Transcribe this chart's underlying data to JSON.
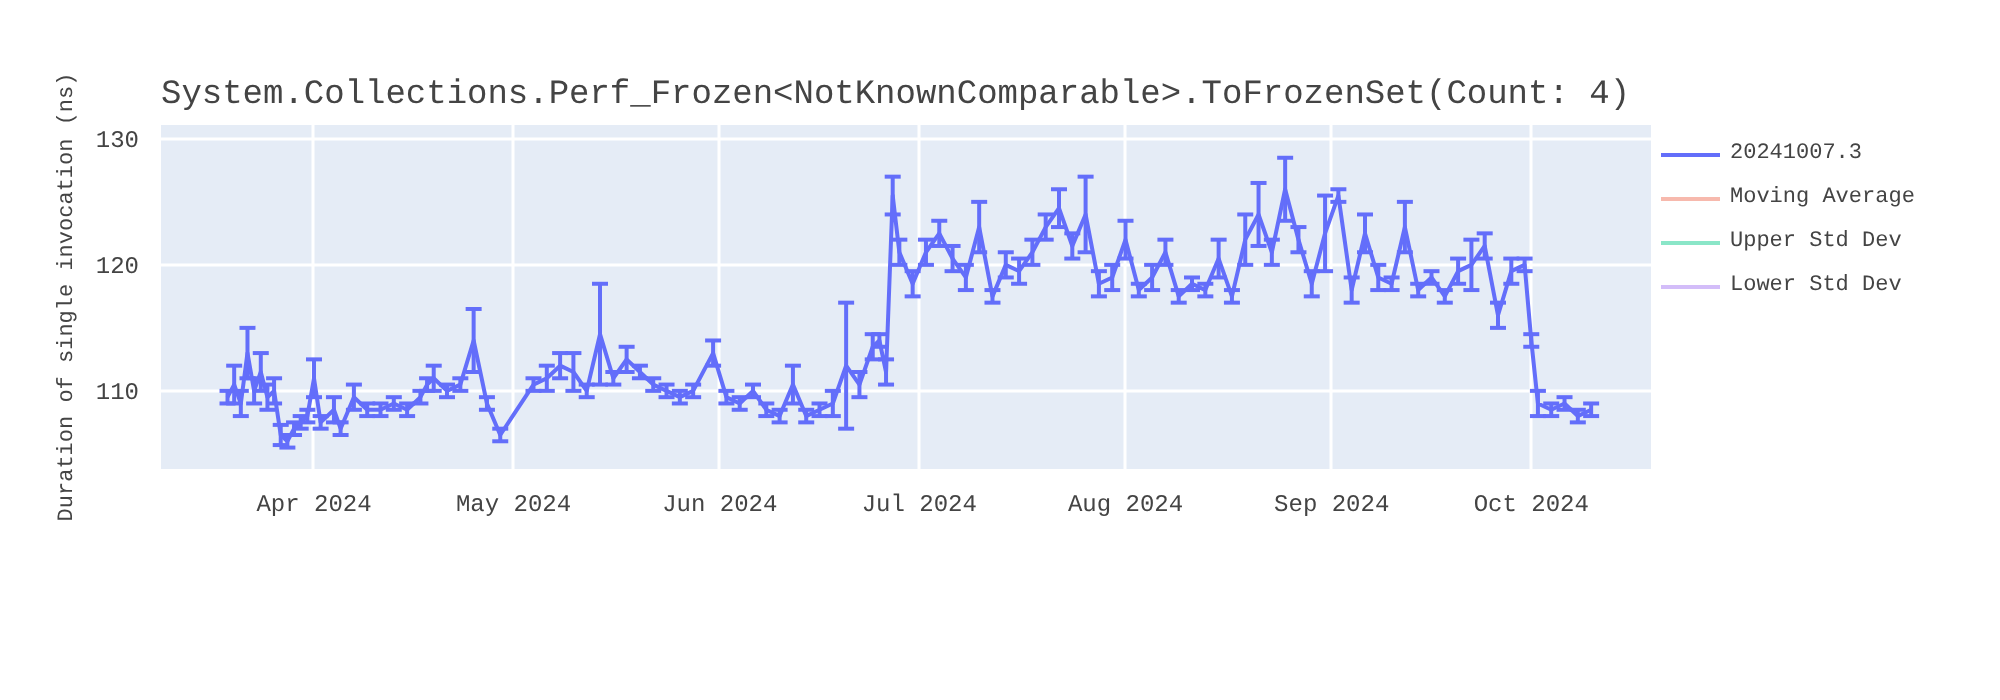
{
  "chart_data": {
    "type": "line",
    "title": "System.Collections.Perf_Frozen<NotKnownComparable>.ToFrozenSet(Count: 4)",
    "ylabel": "Duration of single invocation (ns)",
    "x": [
      "2024-03-19",
      "2024-03-20",
      "2024-03-21",
      "2024-03-22",
      "2024-03-23",
      "2024-03-24",
      "2024-03-25",
      "2024-03-26",
      "2024-03-27",
      "2024-03-28",
      "2024-03-29",
      "2024-03-30",
      "2024-03-31",
      "2024-04-01",
      "2024-04-02",
      "2024-04-04",
      "2024-04-05",
      "2024-04-07",
      "2024-04-09",
      "2024-04-11",
      "2024-04-13",
      "2024-04-15",
      "2024-04-17",
      "2024-04-18",
      "2024-04-19",
      "2024-04-21",
      "2024-04-23",
      "2024-04-25",
      "2024-04-27",
      "2024-04-29",
      "2024-05-04",
      "2024-05-06",
      "2024-05-08",
      "2024-05-10",
      "2024-05-12",
      "2024-05-14",
      "2024-05-16",
      "2024-05-18",
      "2024-05-20",
      "2024-05-22",
      "2024-05-24",
      "2024-05-26",
      "2024-05-28",
      "2024-05-31",
      "2024-06-02",
      "2024-06-04",
      "2024-06-06",
      "2024-06-08",
      "2024-06-10",
      "2024-06-12",
      "2024-06-14",
      "2024-06-16",
      "2024-06-18",
      "2024-06-20",
      "2024-06-22",
      "2024-06-24",
      "2024-06-25",
      "2024-06-26",
      "2024-06-27",
      "2024-06-28",
      "2024-06-30",
      "2024-07-02",
      "2024-07-04",
      "2024-07-06",
      "2024-07-08",
      "2024-07-10",
      "2024-07-12",
      "2024-07-14",
      "2024-07-16",
      "2024-07-18",
      "2024-07-20",
      "2024-07-22",
      "2024-07-24",
      "2024-07-26",
      "2024-07-28",
      "2024-07-30",
      "2024-08-01",
      "2024-08-03",
      "2024-08-05",
      "2024-08-07",
      "2024-08-09",
      "2024-08-11",
      "2024-08-13",
      "2024-08-15",
      "2024-08-17",
      "2024-08-19",
      "2024-08-21",
      "2024-08-23",
      "2024-08-25",
      "2024-08-27",
      "2024-08-29",
      "2024-08-31",
      "2024-09-02",
      "2024-09-04",
      "2024-09-06",
      "2024-09-08",
      "2024-09-10",
      "2024-09-12",
      "2024-09-14",
      "2024-09-16",
      "2024-09-18",
      "2024-09-20",
      "2024-09-22",
      "2024-09-24",
      "2024-09-26",
      "2024-09-28",
      "2024-09-30",
      "2024-10-01",
      "2024-10-02",
      "2024-10-04",
      "2024-10-06",
      "2024-10-08",
      "2024-10-10"
    ],
    "series": [
      {
        "name": "20241007.3",
        "color": "#636efa",
        "values": [
          109.5,
          110.5,
          109,
          113,
          110,
          111.5,
          109.5,
          110,
          106.5,
          106,
          107,
          107.5,
          108,
          111,
          107.5,
          108.5,
          107,
          109.5,
          108.5,
          108.5,
          109,
          108.5,
          109.5,
          110.5,
          111,
          110,
          110.5,
          114,
          109,
          106.5,
          110.5,
          111,
          112,
          111.5,
          110,
          114.5,
          111,
          112.5,
          111.5,
          110.5,
          110,
          109.5,
          110,
          113,
          109.5,
          109,
          110,
          108.5,
          108,
          110.5,
          108,
          108.5,
          109,
          112,
          110.5,
          113.5,
          114,
          111.5,
          125.5,
          121,
          118.5,
          121,
          122.5,
          120.5,
          119,
          123,
          117.5,
          120,
          119.5,
          121,
          123,
          124.5,
          121.5,
          124,
          118.5,
          119,
          122,
          118,
          119,
          121,
          117.5,
          118.5,
          118,
          120.5,
          117.5,
          122,
          124,
          121,
          126,
          122,
          118.5,
          122.5,
          125.5,
          118,
          122.5,
          119,
          118.5,
          123,
          118,
          119,
          117.5,
          119.5,
          120,
          121.5,
          116,
          119.5,
          120,
          114,
          109,
          108.5,
          109,
          108,
          108.5
        ],
        "errors": [
          0.5,
          1.5,
          1,
          2,
          1,
          1.5,
          1,
          1,
          0.8,
          0.5,
          0.5,
          0.5,
          0.5,
          1.5,
          0.5,
          1,
          0.5,
          1,
          0.5,
          0.5,
          0.5,
          0.5,
          0.5,
          0.5,
          1,
          0.5,
          0.5,
          2.5,
          0.5,
          0.5,
          0.5,
          1,
          1,
          1.5,
          0.5,
          4,
          0.5,
          1,
          0.5,
          0.5,
          0.5,
          0.5,
          0.5,
          1,
          0.5,
          0.5,
          0.5,
          0.5,
          0.5,
          1.5,
          0.5,
          0.5,
          1,
          5,
          1,
          1,
          0.5,
          1,
          1.5,
          1,
          1,
          1,
          1,
          1,
          1,
          2,
          0.5,
          1,
          1,
          1,
          1,
          1.5,
          1,
          3,
          1,
          1,
          1.5,
          0.5,
          1,
          1,
          0.5,
          0.5,
          0.5,
          1.5,
          0.5,
          2,
          2.5,
          1,
          2.5,
          1,
          1,
          3,
          0.5,
          1,
          1.5,
          1,
          0.5,
          2,
          0.5,
          0.5,
          0.5,
          1,
          2,
          1,
          1,
          1,
          0.5,
          0.5,
          1,
          0.5,
          0.5,
          0.5,
          0.5
        ]
      },
      {
        "name": "Moving Average",
        "color": "#f7b9ad",
        "values": [
          null,
          null,
          null,
          null,
          null,
          null,
          null,
          null,
          null,
          null,
          null,
          null,
          null,
          null,
          null,
          null,
          null,
          null,
          null,
          null,
          null,
          null,
          null,
          null,
          null,
          null,
          null,
          null,
          null,
          null,
          null,
          null,
          null,
          null,
          null,
          null,
          null,
          null,
          null,
          null,
          null,
          null,
          null,
          null,
          null,
          null,
          null,
          null,
          null,
          null,
          null,
          null,
          null,
          null,
          null,
          null,
          null,
          null,
          null,
          null,
          null,
          null,
          null,
          null,
          null,
          null,
          null,
          null,
          null,
          null,
          null,
          null,
          null,
          null,
          null,
          null,
          null,
          null,
          null,
          null,
          null,
          null,
          null,
          null,
          null,
          null,
          null,
          null,
          null,
          null,
          null,
          null,
          null,
          null,
          null,
          null,
          null,
          null,
          null,
          null,
          null,
          null,
          null,
          null,
          null,
          null,
          null,
          null,
          null,
          null,
          null,
          null,
          null
        ]
      },
      {
        "name": "Upper Std Dev",
        "color": "#8ae6c8",
        "values": [
          null,
          null,
          null,
          null,
          null,
          null,
          null,
          null,
          null,
          null,
          null,
          null,
          null,
          null,
          null,
          null,
          null,
          null,
          null,
          null,
          null,
          null,
          null,
          null,
          null,
          null,
          null,
          null,
          null,
          null,
          null,
          null,
          null,
          null,
          null,
          null,
          null,
          null,
          null,
          null,
          null,
          null,
          null,
          null,
          null,
          null,
          null,
          null,
          null,
          null,
          null,
          null,
          null,
          null,
          null,
          null,
          null,
          null,
          null,
          null,
          null,
          null,
          null,
          null,
          null,
          null,
          null,
          null,
          null,
          null,
          null,
          null,
          null,
          null,
          null,
          null,
          null,
          null,
          null,
          null,
          null,
          null,
          null,
          null,
          null,
          null,
          null,
          null,
          null,
          null,
          null,
          null,
          null,
          null,
          null,
          null,
          null,
          null,
          null,
          null,
          null,
          null,
          null,
          null,
          null,
          null,
          null,
          null,
          null,
          null,
          null,
          null,
          null
        ]
      },
      {
        "name": "Lower Std Dev",
        "color": "#d3bdf9",
        "values": [
          null,
          null,
          null,
          null,
          null,
          null,
          null,
          null,
          null,
          null,
          null,
          null,
          null,
          null,
          null,
          null,
          null,
          null,
          null,
          null,
          null,
          null,
          null,
          null,
          null,
          null,
          null,
          null,
          null,
          null,
          null,
          null,
          null,
          null,
          null,
          null,
          null,
          null,
          null,
          null,
          null,
          null,
          null,
          null,
          null,
          null,
          null,
          null,
          null,
          null,
          null,
          null,
          null,
          null,
          null,
          null,
          null,
          null,
          null,
          null,
          null,
          null,
          null,
          null,
          null,
          null,
          null,
          null,
          null,
          null,
          null,
          null,
          null,
          null,
          null,
          null,
          null,
          null,
          null,
          null,
          null,
          null,
          null,
          null,
          null,
          null,
          null,
          null,
          null,
          null,
          null,
          null,
          null,
          null,
          null,
          null,
          null,
          null,
          null,
          null,
          null,
          null,
          null,
          null,
          null,
          null,
          null,
          null,
          null,
          null,
          null,
          null,
          null
        ]
      }
    ],
    "xlim": [
      "2024-03-09",
      "2024-10-19"
    ],
    "xticks": [
      {
        "value": "2024-04-01",
        "label": "Apr 2024"
      },
      {
        "value": "2024-05-01",
        "label": "May 2024"
      },
      {
        "value": "2024-06-01",
        "label": "Jun 2024"
      },
      {
        "value": "2024-07-01",
        "label": "Jul 2024"
      },
      {
        "value": "2024-08-01",
        "label": "Aug 2024"
      },
      {
        "value": "2024-09-01",
        "label": "Sep 2024"
      },
      {
        "value": "2024-10-01",
        "label": "Oct 2024"
      }
    ],
    "ylim": [
      103.8,
      131.1
    ],
    "yticks": [
      110,
      120,
      130
    ],
    "grid": true,
    "legend": "right",
    "marker": "none",
    "line_style": "solid"
  }
}
